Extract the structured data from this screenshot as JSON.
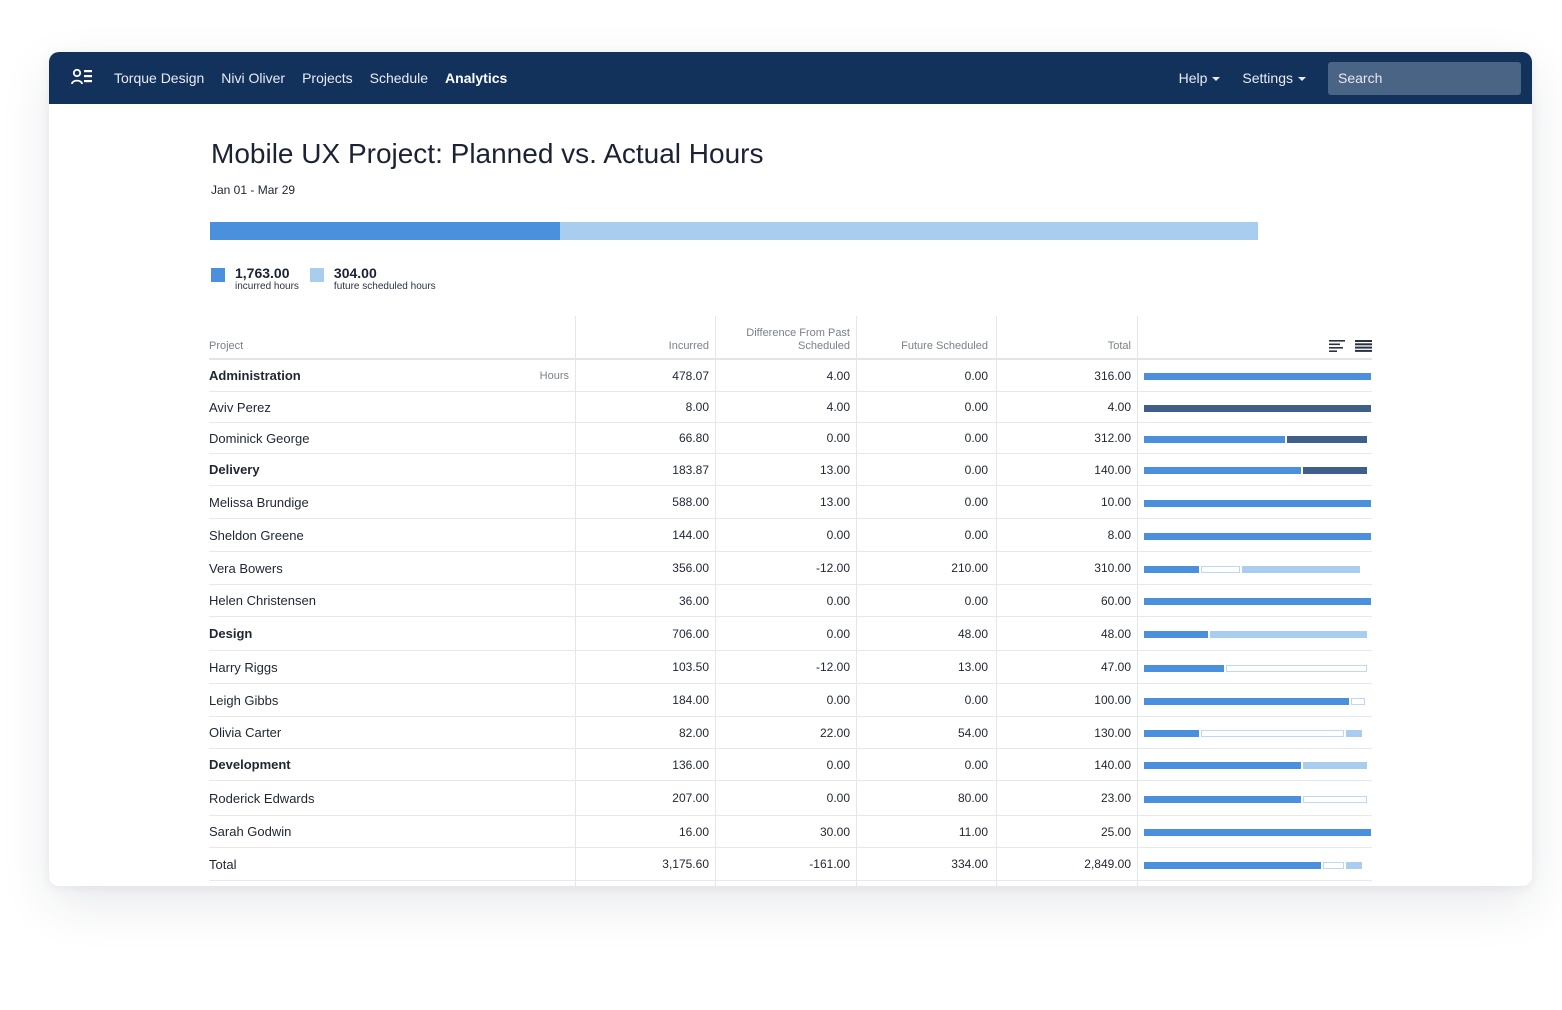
{
  "nav": {
    "logo_icon": "team-icon",
    "links": [
      "Torque Design",
      "Nivi Oliver",
      "Projects",
      "Schedule",
      "Analytics"
    ],
    "active": "Analytics",
    "help": "Help",
    "settings": "Settings",
    "search_placeholder": "Search"
  },
  "header": {
    "title": "Mobile UX Project: Planned vs. Actual Hours",
    "date_range": "Jan 01 - Mar 29"
  },
  "summary": {
    "incurred_value": "1,763.00",
    "incurred_label": "incurred hours",
    "future_value": "304.00",
    "future_label": "future scheduled hours",
    "incurred_fraction": 0.334
  },
  "colors": {
    "nav_bg": "#13325b",
    "incurred": "#4a90dc",
    "future": "#a8cdef",
    "overrun": "#3f5f8a"
  },
  "table": {
    "headers": {
      "project": "Project",
      "incurred": "Incurred",
      "difference": "Difference From Past Scheduled",
      "future": "Future Scheduled",
      "total": "Total"
    },
    "hours_label": "Hours",
    "view_icons": [
      "bar-view-icon",
      "list-view-icon"
    ],
    "rows": [
      {
        "name": "Administration",
        "bold": true,
        "hours": true,
        "incurred": "478.07",
        "difference": "4.00",
        "future": "0.00",
        "total": "316.00",
        "bar": [
          {
            "type": "blue",
            "frac": 1.0
          }
        ]
      },
      {
        "name": "Aviv Perez",
        "bold": false,
        "incurred": "8.00",
        "difference": "4.00",
        "future": "0.00",
        "total": "4.00",
        "bar": [
          {
            "type": "navy",
            "frac": 1.0
          }
        ]
      },
      {
        "name": "Dominick George",
        "bold": false,
        "incurred": "66.80",
        "difference": "0.00",
        "future": "0.00",
        "total": "312.00",
        "bar": [
          {
            "type": "blue",
            "frac": 0.63
          },
          {
            "type": "navy",
            "frac": 0.36
          }
        ]
      },
      {
        "name": "Delivery",
        "bold": true,
        "incurred": "183.87",
        "difference": "13.00",
        "future": "0.00",
        "total": "140.00",
        "bar": [
          {
            "type": "blue",
            "frac": 0.7
          },
          {
            "type": "navy",
            "frac": 0.29
          }
        ]
      },
      {
        "name": "Melissa Brundige",
        "bold": false,
        "incurred": "588.00",
        "difference": "13.00",
        "future": "0.00",
        "total": "10.00",
        "bar": [
          {
            "type": "blue",
            "frac": 1.0
          }
        ]
      },
      {
        "name": "Sheldon Greene",
        "bold": false,
        "incurred": "144.00",
        "difference": "0.00",
        "future": "0.00",
        "total": "8.00",
        "bar": [
          {
            "type": "blue",
            "frac": 1.0
          }
        ]
      },
      {
        "name": "Vera Bowers",
        "bold": false,
        "incurred": "356.00",
        "difference": "-12.00",
        "future": "210.00",
        "total": "310.00",
        "bar": [
          {
            "type": "blue",
            "frac": 0.25
          },
          {
            "type": "outline",
            "frac": 0.18
          },
          {
            "type": "light",
            "frac": 0.53
          }
        ]
      },
      {
        "name": "Helen Christensen",
        "bold": false,
        "incurred": "36.00",
        "difference": "0.00",
        "future": "0.00",
        "total": "60.00",
        "bar": [
          {
            "type": "blue",
            "frac": 1.0
          }
        ]
      },
      {
        "name": "Design",
        "bold": true,
        "incurred": "706.00",
        "difference": "0.00",
        "future": "48.00",
        "total": "48.00",
        "bar": [
          {
            "type": "blue",
            "frac": 0.29
          },
          {
            "type": "light",
            "frac": 0.7
          }
        ]
      },
      {
        "name": "Harry Riggs",
        "bold": false,
        "incurred": "103.50",
        "difference": "-12.00",
        "future": "13.00",
        "total": "47.00",
        "bar": [
          {
            "type": "blue",
            "frac": 0.36
          },
          {
            "type": "outline",
            "frac": 0.63
          }
        ]
      },
      {
        "name": "Leigh Gibbs",
        "bold": false,
        "incurred": "184.00",
        "difference": "0.00",
        "future": "0.00",
        "total": "100.00",
        "bar": [
          {
            "type": "blue",
            "frac": 0.91
          },
          {
            "type": "outline",
            "frac": 0.07
          }
        ]
      },
      {
        "name": "Olivia Carter",
        "bold": false,
        "incurred": "82.00",
        "difference": "22.00",
        "future": "54.00",
        "total": "130.00",
        "bar": [
          {
            "type": "blue",
            "frac": 0.25
          },
          {
            "type": "outline",
            "frac": 0.64
          },
          {
            "type": "light",
            "frac": 0.08
          }
        ]
      },
      {
        "name": "Development",
        "bold": true,
        "incurred": "136.00",
        "difference": "0.00",
        "future": "0.00",
        "total": "140.00",
        "bar": [
          {
            "type": "blue",
            "frac": 0.7
          },
          {
            "type": "light",
            "frac": 0.29
          }
        ]
      },
      {
        "name": "Roderick Edwards",
        "bold": false,
        "incurred": "207.00",
        "difference": "0.00",
        "future": "80.00",
        "total": "23.00",
        "bar": [
          {
            "type": "blue",
            "frac": 0.7
          },
          {
            "type": "outline",
            "frac": 0.29
          }
        ]
      },
      {
        "name": "Sarah Godwin",
        "bold": false,
        "incurred": "16.00",
        "difference": "30.00",
        "future": "11.00",
        "total": "25.00",
        "bar": [
          {
            "type": "blue",
            "frac": 1.0
          }
        ]
      },
      {
        "name": "Total",
        "bold": false,
        "incurred": "3,175.60",
        "difference": "-161.00",
        "future": "334.00",
        "total": "2,849.00",
        "bar": [
          {
            "type": "blue",
            "frac": 0.79
          },
          {
            "type": "outline",
            "frac": 0.1
          },
          {
            "type": "light",
            "frac": 0.08
          }
        ]
      }
    ]
  }
}
